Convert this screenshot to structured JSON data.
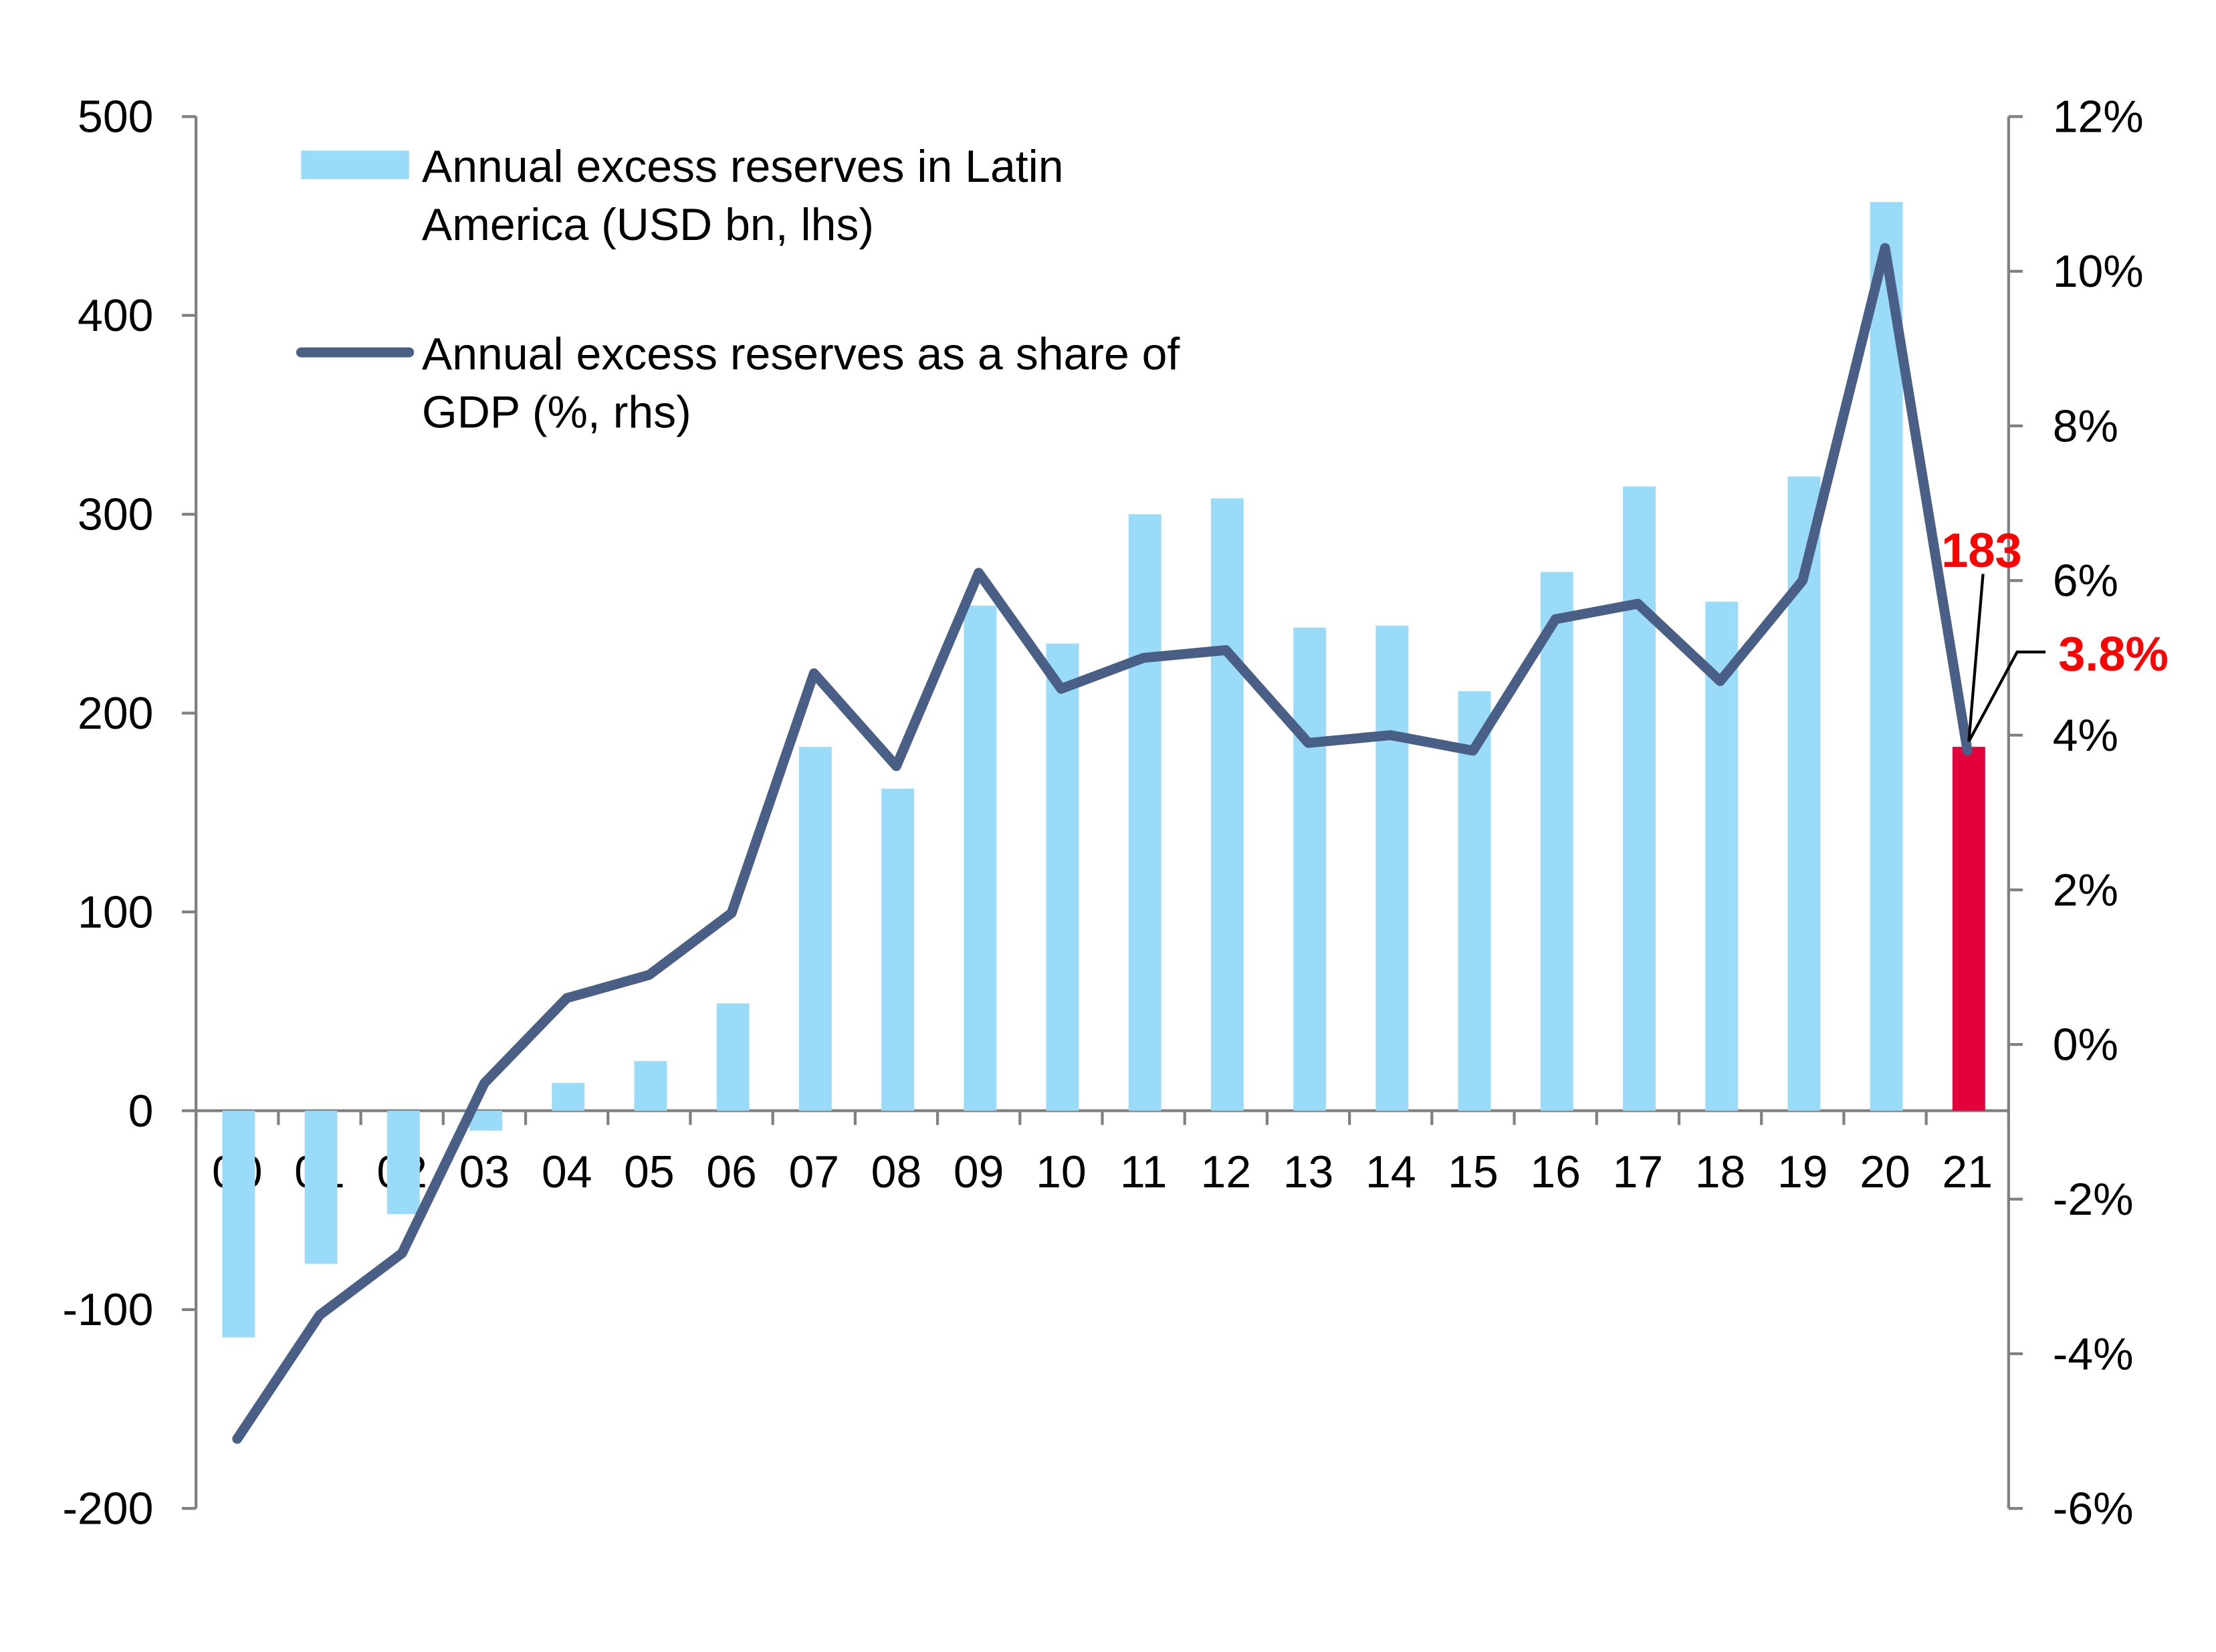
{
  "chart_data": {
    "type": "bar+line",
    "categories": [
      "00",
      "01",
      "02",
      "03",
      "04",
      "05",
      "06",
      "07",
      "08",
      "09",
      "10",
      "11",
      "12",
      "13",
      "14",
      "15",
      "16",
      "17",
      "18",
      "19",
      "20",
      "21"
    ],
    "series": [
      {
        "name": "Annual excess reserves in Latin America (USD bn, lhs)",
        "type": "bar",
        "axis": "left",
        "color": "#99dbf8",
        "highlight": {
          "category": "21",
          "color": "#e4003a"
        },
        "values": [
          -114,
          -77,
          -52,
          -10,
          14,
          25,
          54,
          183,
          162,
          254,
          235,
          300,
          308,
          243,
          244,
          211,
          271,
          314,
          256,
          319,
          457,
          183
        ]
      },
      {
        "name": "Annual excess reserves as a share of GDP (%, rhs)",
        "type": "line",
        "axis": "right",
        "color": "#4a5f85",
        "values": [
          -5.1,
          -3.5,
          -2.7,
          -0.5,
          0.6,
          0.9,
          1.7,
          4.8,
          3.6,
          6.1,
          4.6,
          5.0,
          5.1,
          3.9,
          4.0,
          3.8,
          5.5,
          5.7,
          4.7,
          6.0,
          10.3,
          3.8
        ]
      }
    ],
    "left_axis": {
      "ylim": [
        -200,
        500
      ],
      "ticks": [
        "-200",
        "-100",
        "0",
        "100",
        "200",
        "300",
        "400",
        "500"
      ]
    },
    "right_axis": {
      "ylim": [
        -6,
        12
      ],
      "ticks": [
        "-6%",
        "-4%",
        "-2%",
        "0%",
        "2%",
        "4%",
        "6%",
        "8%",
        "10%",
        "12%"
      ]
    },
    "legend": {
      "placement": "top-left",
      "entries": [
        [
          "Annual excess reserves in Latin",
          "America (USD bn, lhs)"
        ],
        [
          "Annual excess reserves as a share of",
          "GDP (%, rhs)"
        ]
      ]
    },
    "annotations": [
      {
        "text": "183",
        "color": "#ff0000"
      },
      {
        "text": "3.8%",
        "color": "#ff0000"
      }
    ],
    "grid": false
  }
}
